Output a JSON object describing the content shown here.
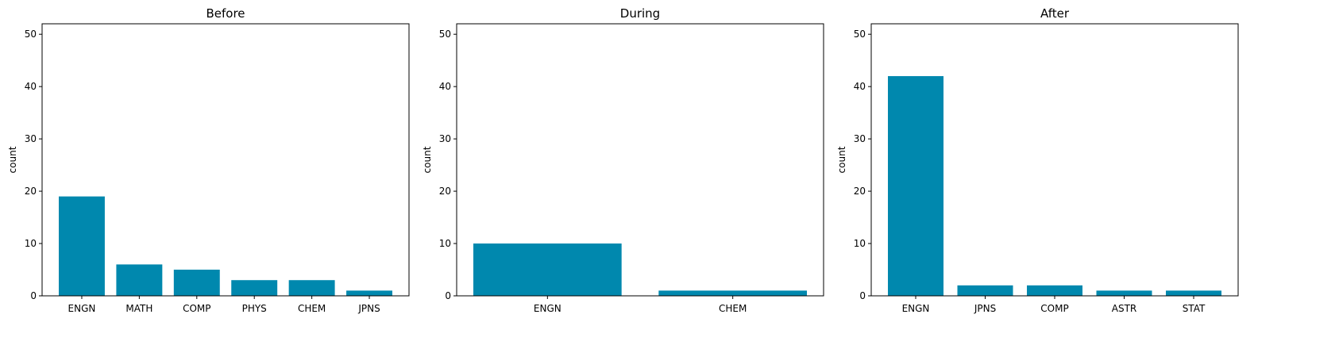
{
  "chart_data": [
    {
      "type": "bar",
      "title": "Before",
      "xlabel": "",
      "ylabel": "count",
      "categories": [
        "ENGN",
        "MATH",
        "COMP",
        "PHYS",
        "CHEM",
        "JPNS"
      ],
      "values": [
        19,
        6,
        5,
        3,
        3,
        1
      ],
      "ylim": [
        0,
        52
      ],
      "yticks": [
        0,
        10,
        20,
        30,
        40,
        50
      ],
      "bar_color": "#0088AE",
      "grid": false
    },
    {
      "type": "bar",
      "title": "During",
      "xlabel": "",
      "ylabel": "count",
      "categories": [
        "ENGN",
        "CHEM"
      ],
      "values": [
        10,
        1
      ],
      "ylim": [
        0,
        52
      ],
      "yticks": [
        0,
        10,
        20,
        30,
        40,
        50
      ],
      "bar_color": "#0088AE",
      "grid": false
    },
    {
      "type": "bar",
      "title": "After",
      "xlabel": "",
      "ylabel": "count",
      "categories": [
        "ENGN",
        "JPNS",
        "COMP",
        "ASTR",
        "STAT"
      ],
      "values": [
        42,
        2,
        2,
        1,
        1
      ],
      "ylim": [
        0,
        52
      ],
      "yticks": [
        0,
        10,
        20,
        30,
        40,
        50
      ],
      "bar_color": "#0088AE",
      "grid": false
    }
  ]
}
